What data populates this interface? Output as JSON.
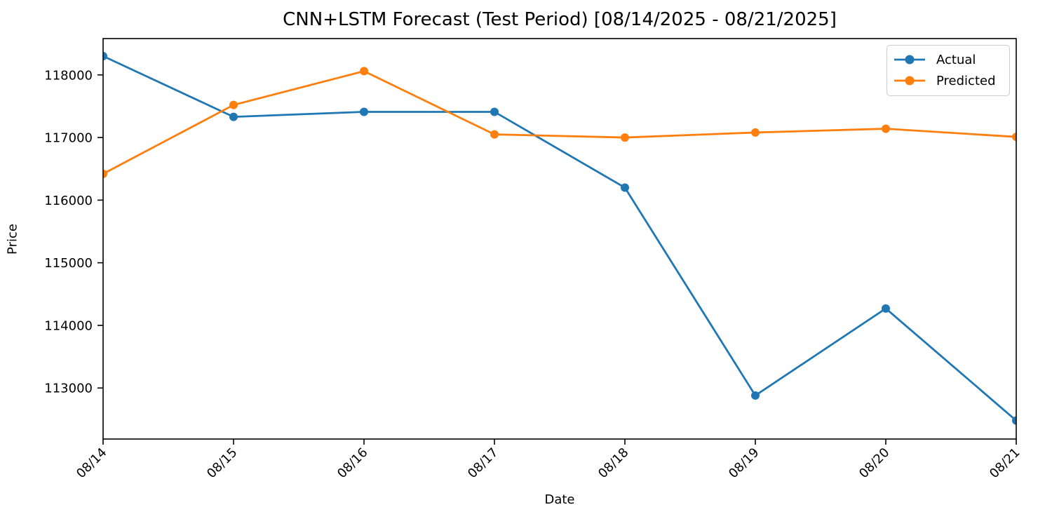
{
  "chart_data": {
    "type": "line",
    "title": "CNN+LSTM Forecast (Test Period) [08/14/2025 - 08/21/2025]",
    "xlabel": "Date",
    "ylabel": "Price",
    "categories": [
      "08/14",
      "08/15",
      "08/16",
      "08/17",
      "08/18",
      "08/19",
      "08/20",
      "08/21"
    ],
    "series": [
      {
        "name": "Actual",
        "color": "#1f77b4",
        "marker": "circle",
        "values": [
          118300,
          117330,
          117410,
          117410,
          116200,
          112880,
          114270,
          112480
        ]
      },
      {
        "name": "Predicted",
        "color": "#ff7f0e",
        "marker": "circle",
        "values": [
          116420,
          117520,
          118060,
          117050,
          117000,
          117080,
          117140,
          117010
        ]
      }
    ],
    "yticks": [
      113000,
      114000,
      115000,
      116000,
      117000,
      118000
    ],
    "ylim": [
      112185,
      118580
    ],
    "x_tick_rotation": 45,
    "grid": false,
    "legend_position": "upper right"
  }
}
